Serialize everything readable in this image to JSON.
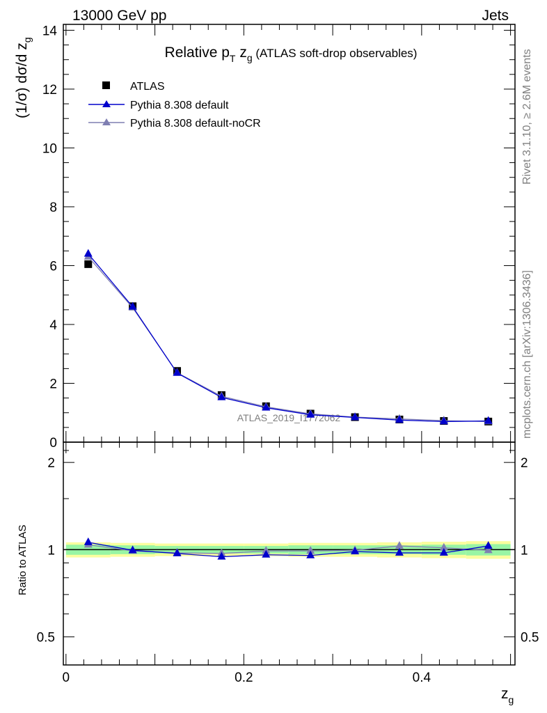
{
  "header": {
    "left": "13000 GeV pp",
    "right": "Jets"
  },
  "side_labels": {
    "rivet": "Rivet 3.1.10, ≥ 2.6M events",
    "mcplots": "mcplots.cern.ch [arXiv:1306.3436]"
  },
  "chart_data": {
    "type": "line",
    "title": {
      "prefix": "Relative p",
      "sub1": "T",
      "mid": " z",
      "sub2": "g",
      "suffix": " (ATLAS soft-drop observables)"
    },
    "analysis_tag": "ATLAS_2019_I1772062",
    "xlabel": {
      "base": "z",
      "sub": "g"
    },
    "ylabel": {
      "base": "(1/σ) dσ/d z",
      "sub": "g"
    },
    "ratio_ylabel": "Ratio to ATLAS",
    "xlim": [
      -0.003,
      0.505
    ],
    "ylim": [
      0,
      14.2
    ],
    "ratio_ylim": [
      0.4,
      2.35
    ],
    "x_ticks": [
      "0",
      "0.2",
      "0.4"
    ],
    "x_tick_values": [
      0,
      0.2,
      0.4
    ],
    "y_ticks": [
      "0",
      "2",
      "4",
      "6",
      "8",
      "10",
      "12",
      "14"
    ],
    "y_tick_values": [
      0,
      2,
      4,
      6,
      8,
      10,
      12,
      14
    ],
    "ratio_ticks": [
      "0.5",
      "1",
      "2"
    ],
    "ratio_tick_values": [
      0.5,
      1,
      2
    ],
    "x": [
      0.025,
      0.075,
      0.125,
      0.175,
      0.225,
      0.275,
      0.325,
      0.375,
      0.425,
      0.475
    ],
    "legend_position": "top-left",
    "series": [
      {
        "name": "ATLAS",
        "kind": "data",
        "color": "#000000",
        "values": [
          6.05,
          4.62,
          2.42,
          1.6,
          1.22,
          0.97,
          0.85,
          0.77,
          0.72,
          0.7
        ]
      },
      {
        "name": "Pythia 8.308 default",
        "kind": "mc",
        "color": "#0000cc",
        "values": [
          6.4,
          4.6,
          2.35,
          1.52,
          1.17,
          0.93,
          0.84,
          0.75,
          0.7,
          0.72
        ],
        "ratio": [
          1.06,
          0.995,
          0.97,
          0.945,
          0.96,
          0.955,
          0.985,
          0.975,
          0.975,
          1.03
        ]
      },
      {
        "name": "Pythia 8.308 default-noCR",
        "kind": "mc",
        "color": "#7f7fb2",
        "values": [
          6.3,
          4.57,
          2.36,
          1.56,
          1.2,
          0.96,
          0.85,
          0.79,
          0.73,
          0.7
        ],
        "ratio": [
          1.04,
          0.99,
          0.975,
          0.97,
          0.99,
          0.99,
          0.995,
          1.03,
          1.015,
          0.995
        ]
      }
    ],
    "ratio_band": {
      "inner_color": "#98f5a4",
      "outer_color": "#fbfe9e",
      "inner": [
        0.04,
        0.035,
        0.03,
        0.03,
        0.03,
        0.035,
        0.035,
        0.035,
        0.04,
        0.045
      ],
      "outer": [
        0.06,
        0.055,
        0.05,
        0.05,
        0.05,
        0.055,
        0.055,
        0.06,
        0.065,
        0.07
      ]
    }
  }
}
